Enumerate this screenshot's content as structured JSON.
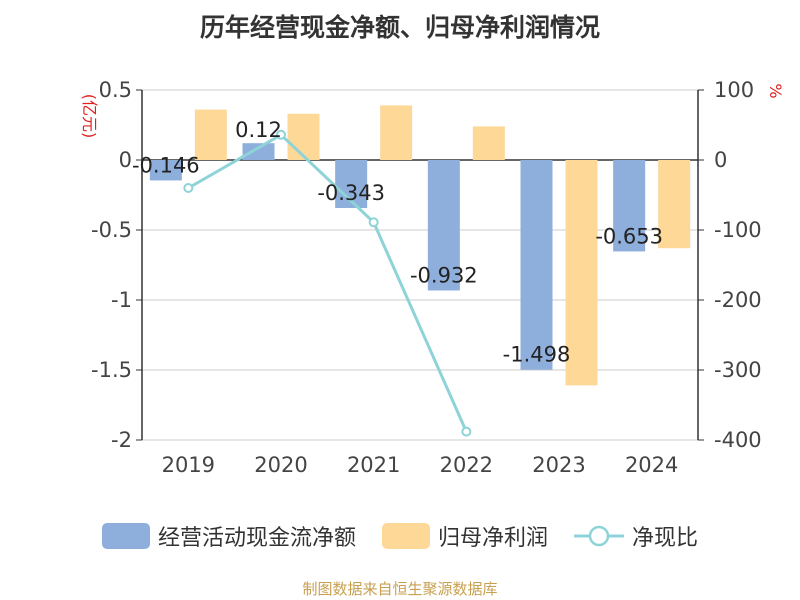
{
  "chart_data": {
    "type": "bar",
    "title": "历年经营现金净额、归母净利润情况",
    "categories": [
      "2019",
      "2020",
      "2021",
      "2022",
      "2023",
      "2024"
    ],
    "series": [
      {
        "name": "经营活动现金流净额",
        "type": "bar",
        "axis": "left",
        "color": "#8eaedc",
        "values": [
          -0.146,
          0.12,
          -0.343,
          -0.932,
          -1.498,
          -0.653
        ],
        "labels": [
          "-0.146",
          "0.12",
          "-0.343",
          "-0.932",
          "-1.498",
          "-0.653"
        ]
      },
      {
        "name": "归母净利润",
        "type": "bar",
        "axis": "left",
        "color": "#fdd897",
        "values": [
          0.36,
          0.33,
          0.39,
          0.24,
          -1.61,
          -0.63
        ]
      },
      {
        "name": "净现比",
        "type": "line",
        "axis": "right",
        "color": "#8dd3d8",
        "values": [
          -40,
          36,
          -89,
          -388,
          null,
          null
        ]
      }
    ],
    "y_left": {
      "label": "(亿元)",
      "ylim": [
        -2,
        0.5
      ],
      "ticks": [
        0.5,
        0,
        -0.5,
        -1,
        -1.5,
        -2
      ],
      "tick_labels": [
        "0.5",
        "0",
        "-0.5",
        "-1",
        "-1.5",
        "-2"
      ]
    },
    "y_right": {
      "label": "%",
      "ylim": [
        -400,
        100
      ],
      "ticks": [
        100,
        0,
        -100,
        -200,
        -300,
        -400
      ],
      "tick_labels": [
        "100",
        "0",
        "-100",
        "-200",
        "-300",
        "-400"
      ]
    },
    "grid": true,
    "legend_position": "bottom"
  },
  "source": "制图数据来自恒生聚源数据库"
}
